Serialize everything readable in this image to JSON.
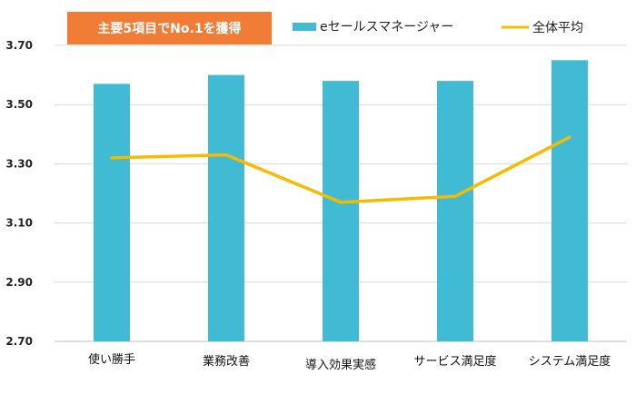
{
  "chart_data": {
    "type": "bar",
    "title": "",
    "badge": "主要5項目でNo.1を獲得",
    "categories": [
      "使い勝手",
      "業務改善",
      "導入効果実感",
      "サービス満足度",
      "システム満足度"
    ],
    "series": [
      {
        "name": "eセールスマネージャー",
        "type": "bar",
        "values": [
          3.57,
          3.6,
          3.58,
          3.58,
          3.65
        ]
      },
      {
        "name": "全体平均",
        "type": "line",
        "values": [
          3.32,
          3.33,
          3.17,
          3.19,
          3.39
        ]
      }
    ],
    "ylim": [
      2.7,
      3.7
    ],
    "yticks": [
      "2.70",
      "2.90",
      "3.10",
      "3.30",
      "3.50",
      "3.70"
    ],
    "xlabel": "",
    "ylabel": "",
    "grid": true,
    "legend_position": "top",
    "colors": {
      "bar": "#41bad3",
      "line": "#f5bb00",
      "badge": "#f07c35",
      "grid": "#d9d9d9"
    }
  }
}
